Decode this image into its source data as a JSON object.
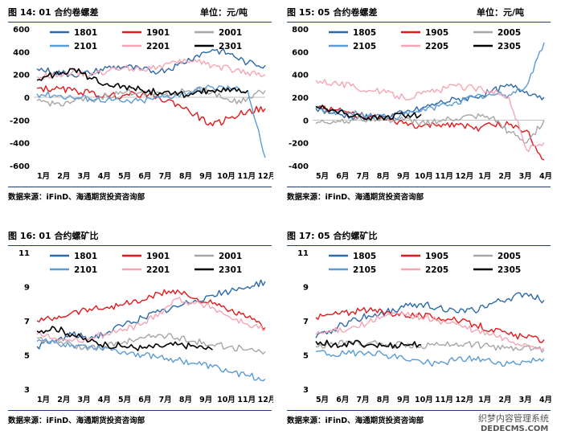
{
  "panels": [
    {
      "title": "图 14:   01 合约卷螺差",
      "unit": "单位：元/吨",
      "source": "数据来源：iFinD、海通期货投资咨询部",
      "chart_data": {
        "type": "line",
        "ylim": [
          -600,
          600
        ],
        "yticks": [
          600,
          400,
          200,
          0,
          -200,
          -400,
          -600
        ],
        "ytick_labels": [
          "600",
          "400",
          "200",
          "0",
          "-200",
          "-400",
          "-600"
        ],
        "xtick_labels": [
          "1月",
          "2月",
          "3月",
          "4月",
          "5月",
          "6月",
          "7月",
          "8月",
          "9月",
          "10月",
          "11月",
          "12月"
        ],
        "zero_line": true,
        "series": [
          {
            "name": "1801",
            "color": "#2e6aa8",
            "values": [
              250,
              220,
              200,
              210,
              260,
              270,
              240,
              230,
              280,
              360,
              420,
              380,
              300,
              280
            ]
          },
          {
            "name": "1901",
            "color": "#e31a1c",
            "values": [
              80,
              70,
              60,
              40,
              10,
              20,
              30,
              -10,
              -60,
              -150,
              -250,
              -180,
              -120,
              -100
            ]
          },
          {
            "name": "2001",
            "color": "#a6a6a6",
            "values": [
              -30,
              -60,
              -40,
              -20,
              10,
              40,
              50,
              30,
              40,
              70,
              50,
              -40,
              -10,
              60
            ]
          },
          {
            "name": "2101",
            "color": "#5b9bd5",
            "values": [
              30,
              20,
              0,
              -10,
              -20,
              -40,
              -30,
              0,
              20,
              60,
              90,
              80,
              60,
              -530
            ]
          },
          {
            "name": "2201",
            "color": "#f4a6b4",
            "values": [
              180,
              200,
              220,
              190,
              230,
              260,
              250,
              280,
              300,
              330,
              280,
              250,
              220,
              200
            ]
          },
          {
            "name": "2301",
            "color": "#000000",
            "values": [
              150,
              200,
              250,
              170,
              120,
              100,
              60,
              40,
              20,
              40,
              60,
              50,
              60,
              null
            ]
          }
        ]
      }
    },
    {
      "title": "图 15:   05 合约卷螺差",
      "unit": "单位：元/吨",
      "source": "数据来源：iFinD、海通期货投资咨询部",
      "chart_data": {
        "type": "line",
        "ylim": [
          -400,
          800
        ],
        "yticks": [
          800,
          600,
          400,
          200,
          0,
          -200,
          -400
        ],
        "ytick_labels": [
          "800",
          "600",
          "400",
          "200",
          "0",
          "-200",
          "-400"
        ],
        "xtick_labels": [
          "5月",
          "6月",
          "7月",
          "8月",
          "9月",
          "10月",
          "11月",
          "12月",
          "1月",
          "2月",
          "3月",
          "4月"
        ],
        "zero_line": true,
        "series": [
          {
            "name": "1805",
            "color": "#2e6aa8",
            "values": [
              100,
              60,
              30,
              20,
              30,
              60,
              100,
              150,
              180,
              200,
              250,
              300,
              250,
              200
            ]
          },
          {
            "name": "1905",
            "color": "#e31a1c",
            "values": [
              120,
              90,
              60,
              30,
              0,
              -30,
              -60,
              -40,
              -30,
              -80,
              -40,
              -40,
              -90,
              -350
            ]
          },
          {
            "name": "2005",
            "color": "#a6a6a6",
            "values": [
              -30,
              -10,
              0,
              10,
              10,
              0,
              -20,
              -10,
              10,
              30,
              20,
              -100,
              -200,
              0
            ]
          },
          {
            "name": "2105",
            "color": "#5b9bd5",
            "values": [
              100,
              80,
              60,
              40,
              30,
              40,
              80,
              120,
              160,
              200,
              220,
              220,
              300,
              680
            ]
          },
          {
            "name": "2205",
            "color": "#f4a6b4",
            "values": [
              350,
              330,
              300,
              260,
              240,
              200,
              230,
              260,
              300,
              280,
              260,
              200,
              -260,
              -200
            ]
          },
          {
            "name": "2305",
            "color": "#000000",
            "values": [
              120,
              90,
              30,
              20,
              30,
              40,
              50,
              null,
              null,
              null,
              null,
              null,
              null,
              null
            ]
          }
        ]
      }
    },
    {
      "title": "图 16:   01 合约螺矿比",
      "unit": "",
      "source": "数据来源：iFinD、海通期货投资咨询部",
      "chart_data": {
        "type": "line",
        "ylim": [
          3,
          11
        ],
        "yticks": [
          11,
          9,
          7,
          5,
          3
        ],
        "ytick_labels": [
          "11",
          "9",
          "7",
          "5",
          "3"
        ],
        "xtick_labels": [
          "1月",
          "2月",
          "3月",
          "4月",
          "5月",
          "6月",
          "7月",
          "8月",
          "9月",
          "10月",
          "11月",
          "12月"
        ],
        "zero_line": false,
        "series": [
          {
            "name": "1801",
            "color": "#2e6aa8",
            "values": [
              5.5,
              5.8,
              6.2,
              6.0,
              6.3,
              6.8,
              7.2,
              7.5,
              7.8,
              8.2,
              8.5,
              8.7,
              9.0,
              9.3
            ]
          },
          {
            "name": "1901",
            "color": "#e31a1c",
            "values": [
              7.0,
              7.2,
              7.5,
              7.7,
              7.8,
              8.0,
              8.2,
              8.6,
              8.8,
              8.3,
              8.0,
              7.6,
              7.2,
              6.6
            ]
          },
          {
            "name": "2001",
            "color": "#a6a6a6",
            "values": [
              6.0,
              5.8,
              5.6,
              5.4,
              5.5,
              5.8,
              6.0,
              6.2,
              6.0,
              5.8,
              5.6,
              5.5,
              5.3,
              5.2
            ]
          },
          {
            "name": "2101",
            "color": "#5b9bd5",
            "values": [
              5.8,
              5.7,
              5.6,
              5.5,
              5.4,
              5.2,
              5.0,
              4.9,
              4.7,
              4.5,
              4.3,
              4.0,
              3.8,
              3.6
            ]
          },
          {
            "name": "2201",
            "color": "#f4a6b4",
            "values": [
              6.2,
              6.0,
              5.8,
              6.0,
              6.2,
              6.5,
              6.8,
              7.5,
              8.3,
              8.0,
              7.8,
              7.2,
              6.8,
              6.5
            ]
          },
          {
            "name": "2301",
            "color": "#000000",
            "values": [
              6.4,
              6.6,
              6.2,
              5.8,
              5.6,
              5.5,
              5.4,
              5.5,
              5.6,
              5.5,
              5.3,
              null,
              null,
              null
            ]
          }
        ]
      }
    },
    {
      "title": "图 17:   05 合约螺矿比",
      "unit": "",
      "source": "数据来源：iFinD、海通期货投资咨询部",
      "chart_data": {
        "type": "line",
        "ylim": [
          3,
          11
        ],
        "yticks": [
          11,
          9,
          7,
          5,
          3
        ],
        "ytick_labels": [
          "11",
          "9",
          "7",
          "5",
          "3"
        ],
        "xtick_labels": [
          "5月",
          "6月",
          "7月",
          "8月",
          "9月",
          "10月",
          "11月",
          "12月",
          "1月",
          "2月",
          "3月",
          "4月"
        ],
        "zero_line": false,
        "series": [
          {
            "name": "1805",
            "color": "#2e6aa8",
            "values": [
              6.0,
              6.5,
              7.0,
              7.3,
              7.5,
              7.8,
              8.0,
              7.8,
              7.5,
              7.6,
              8.0,
              8.3,
              8.6,
              8.2
            ]
          },
          {
            "name": "1905",
            "color": "#e31a1c",
            "values": [
              7.2,
              7.4,
              7.5,
              7.6,
              7.5,
              7.4,
              7.3,
              7.2,
              7.0,
              6.8,
              6.5,
              6.2,
              6.0,
              5.9
            ]
          },
          {
            "name": "2005",
            "color": "#a6a6a6",
            "values": [
              5.5,
              5.6,
              5.8,
              5.7,
              5.6,
              5.6,
              5.5,
              5.6,
              5.7,
              5.6,
              5.5,
              5.4,
              5.5,
              5.3
            ]
          },
          {
            "name": "2105",
            "color": "#5b9bd5",
            "values": [
              5.2,
              5.0,
              5.1,
              5.2,
              5.0,
              4.8,
              4.6,
              4.5,
              4.7,
              4.8,
              4.6,
              4.5,
              4.6,
              4.8
            ]
          },
          {
            "name": "2205",
            "color": "#f4a6b4",
            "values": [
              6.2,
              6.4,
              6.6,
              6.9,
              7.3,
              7.4,
              7.2,
              7.0,
              6.8,
              6.4,
              6.2,
              5.8,
              5.6,
              5.4
            ]
          },
          {
            "name": "2305",
            "color": "#000000",
            "values": [
              5.8,
              5.6,
              5.7,
              5.6,
              5.5,
              5.6,
              5.6,
              null,
              null,
              null,
              null,
              null,
              null,
              null
            ]
          }
        ]
      }
    }
  ],
  "watermark": {
    "line1": "织梦内容管理系统",
    "line2": "DEDECMS.COM"
  }
}
